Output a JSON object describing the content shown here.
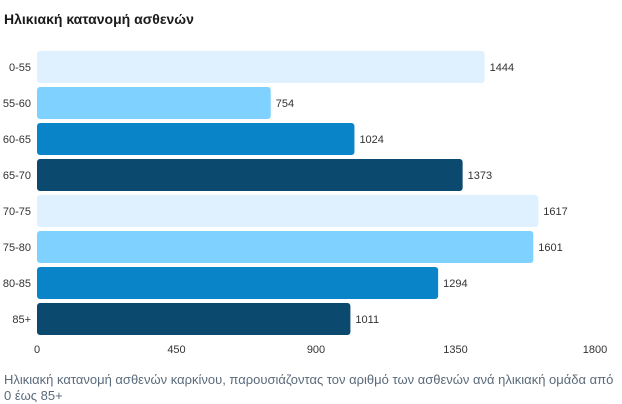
{
  "chart_data": {
    "type": "bar",
    "orientation": "horizontal",
    "title": "Ηλικιακή κατανομή ασθενών",
    "categories": [
      "0-55",
      "55-60",
      "60-65",
      "65-70",
      "70-75",
      "75-80",
      "80-85",
      "85+"
    ],
    "values": [
      1444,
      754,
      1024,
      1373,
      1617,
      1601,
      1294,
      1011
    ],
    "xlim": [
      0,
      1800
    ],
    "xticks": [
      0,
      450,
      900,
      1350,
      1800
    ],
    "grid": false,
    "colors": [
      "#dff0ff",
      "#7fd1ff",
      "#0a84c8",
      "#0b4a6e",
      "#dff0ff",
      "#7fd1ff",
      "#0a84c8",
      "#0b4a6e"
    ]
  },
  "caption": "Ηλικιακή κατανομή ασθενών καρκίνου, παρουσιάζοντας τον αριθμό των ασθενών ανά ηλικιακή ομάδα από 0 έως 85+"
}
